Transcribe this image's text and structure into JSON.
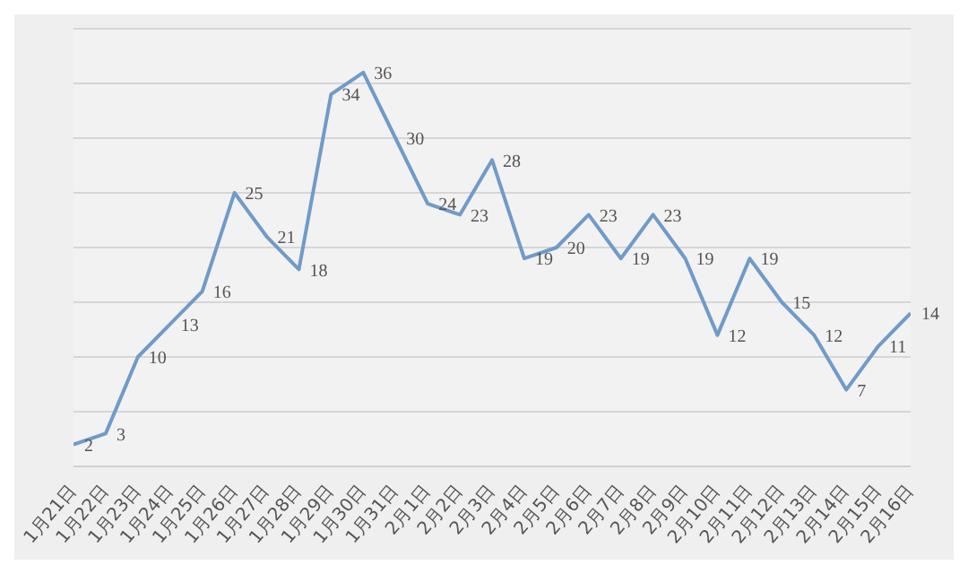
{
  "chart_data": {
    "type": "line",
    "categories": [
      "1月21日",
      "1月22日",
      "1月23日",
      "1月24日",
      "1月25日",
      "1月26日",
      "1月27日",
      "1月28日",
      "1月29日",
      "1月30日",
      "1月31日",
      "2月1日",
      "2月2日",
      "2月3日",
      "2月4日",
      "2月5日",
      "2月6日",
      "2月7日",
      "2月8日",
      "2月9日",
      "2月10日",
      "2月11日",
      "2月12日",
      "2月13日",
      "2月14日",
      "2月15日",
      "2月16日"
    ],
    "series": [
      {
        "color": "#6f9bc9",
        "values": [
          2,
          3,
          10,
          13,
          16,
          25,
          21,
          18,
          34,
          36,
          30,
          24,
          23,
          28,
          19,
          20,
          23,
          19,
          23,
          19,
          12,
          19,
          15,
          12,
          7,
          11,
          14
        ]
      }
    ],
    "tick_labels": "x",
    "grid": "y",
    "data_labels": true,
    "marker": "none",
    "line_style": "solid",
    "legend": false
  }
}
